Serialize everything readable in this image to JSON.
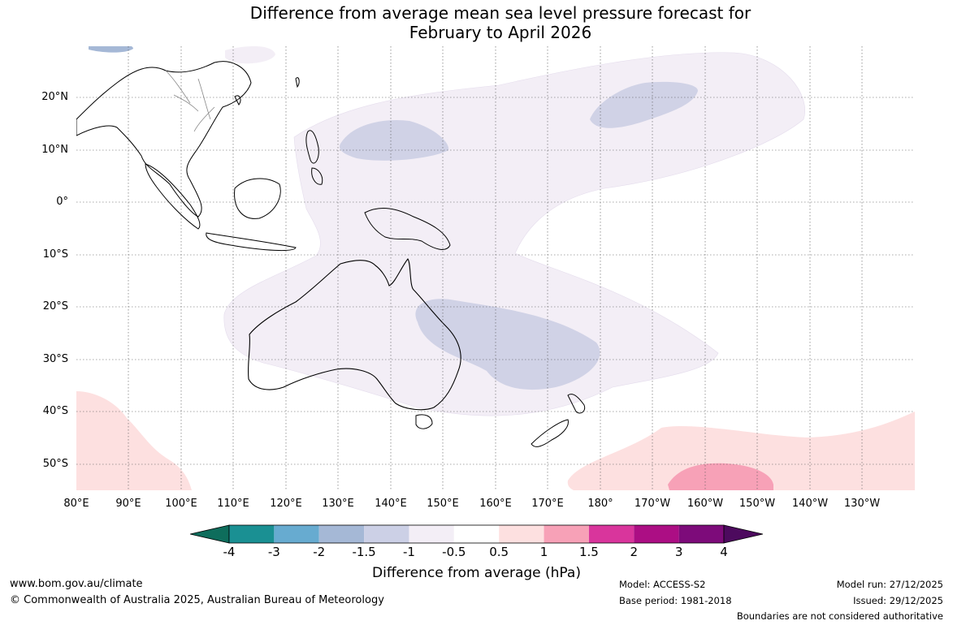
{
  "title": {
    "line1": "Difference from average mean sea level pressure forecast for",
    "line2": "February to April 2026"
  },
  "latitudes": [
    "20°N",
    "10°N",
    "0°",
    "10°S",
    "20°S",
    "30°S",
    "40°S",
    "50°S"
  ],
  "longitudes": [
    "80°E",
    "90°E",
    "100°E",
    "110°E",
    "120°E",
    "130°E",
    "140°E",
    "150°E",
    "160°E",
    "170°E",
    "180°",
    "170°W",
    "160°W",
    "150°W",
    "140°W",
    "130°W"
  ],
  "legend": {
    "colors": [
      "#0e6d5c",
      "#1a9093",
      "#67abd0",
      "#a5b8d6",
      "#ccd0e6",
      "#f3eef6",
      "#ffffff",
      "#fde0e0",
      "#f7a1b7",
      "#d9359c",
      "#ac0e84",
      "#7d0b7a",
      "#4d0a5e"
    ],
    "ticks": [
      "-4",
      "-3",
      "-2",
      "-1.5",
      "-1",
      "-0.5",
      "0.5",
      "1",
      "1.5",
      "2",
      "3",
      "4"
    ],
    "label": "Difference from average (hPa)"
  },
  "map_fill_colors": {
    "light_neg": "#f3eef6",
    "mid_neg": "#d0d2e6",
    "blue_neg": "#a5b8d6",
    "light_pos": "#fde0e0",
    "mid_pos": "#f7a1b7",
    "coast": "#000000",
    "border": "#888888"
  },
  "footer": {
    "website": "www.bom.gov.au/climate",
    "copyright": "© Commonwealth of Australia 2025, Australian Bureau of Meteorology",
    "model": "Model: ACCESS-S2",
    "base_period": "Base period: 1981-2018",
    "model_run": "Model run: 27/12/2025",
    "issued": "Issued: 29/12/2025",
    "disclaimer": "Boundaries are not considered authoritative"
  }
}
